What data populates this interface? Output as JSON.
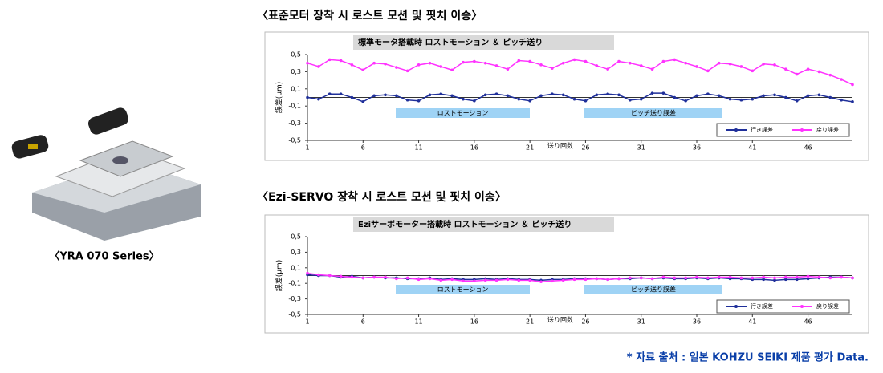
{
  "product_caption": "〈YRA 070 Series〉",
  "source_note": "* 자료 출처 : 일본 KOHZU SEIKI 제품 평가 Data.",
  "chart_data": [
    {
      "type": "line",
      "heading": "〈표준모터 장착 시 로스트 모션 및 핏치 이송〉",
      "title": "標準モータ搭載時  ロストモーション  ＆  ピッチ送り",
      "x_label": "送り回数",
      "y_label": "誤差(μm)",
      "annotations": [
        "ロストモーション",
        "ピッチ送り誤差"
      ],
      "x": [
        1,
        2,
        3,
        4,
        5,
        6,
        7,
        8,
        9,
        10,
        11,
        12,
        13,
        14,
        15,
        16,
        17,
        18,
        19,
        20,
        21,
        22,
        23,
        24,
        25,
        26,
        27,
        28,
        29,
        30,
        31,
        32,
        33,
        34,
        35,
        36,
        37,
        38,
        39,
        40,
        41,
        42,
        43,
        44,
        45,
        46,
        47,
        48,
        49,
        50
      ],
      "xlim": [
        1,
        50
      ],
      "xticks": [
        1,
        6,
        11,
        16,
        21,
        26,
        31,
        36,
        41,
        46
      ],
      "ylim": [
        -0.5,
        0.5
      ],
      "yticks": [
        {
          "value": -0.5,
          "label": "-0,5"
        },
        {
          "value": -0.3,
          "label": "-0,3"
        },
        {
          "value": -0.1,
          "label": "-0,1"
        },
        {
          "value": 0.1,
          "label": "0,1"
        },
        {
          "value": 0.3,
          "label": "0,3"
        },
        {
          "value": 0.5,
          "label": "0,5"
        }
      ],
      "legend": "lower right",
      "series": [
        {
          "name": "行き誤差",
          "color": "#1f2f9a",
          "values": [
            0.0,
            -0.02,
            0.04,
            0.04,
            0.0,
            -0.05,
            0.02,
            0.03,
            0.02,
            -0.03,
            -0.04,
            0.03,
            0.04,
            0.02,
            -0.02,
            -0.04,
            0.03,
            0.04,
            0.02,
            -0.02,
            -0.04,
            0.02,
            0.04,
            0.03,
            -0.02,
            -0.04,
            0.03,
            0.04,
            0.03,
            -0.03,
            -0.02,
            0.05,
            0.05,
            0.0,
            -0.04,
            0.02,
            0.04,
            0.02,
            -0.02,
            -0.03,
            -0.02,
            0.02,
            0.03,
            0.0,
            -0.04,
            0.02,
            0.03,
            0.0,
            -0.03,
            -0.05
          ]
        },
        {
          "name": "戻り誤差",
          "color": "#ff33ff",
          "values": [
            0.4,
            0.36,
            0.44,
            0.43,
            0.38,
            0.32,
            0.4,
            0.39,
            0.35,
            0.31,
            0.38,
            0.4,
            0.36,
            0.32,
            0.41,
            0.42,
            0.4,
            0.37,
            0.33,
            0.43,
            0.42,
            0.38,
            0.34,
            0.4,
            0.44,
            0.42,
            0.37,
            0.33,
            0.42,
            0.4,
            0.37,
            0.33,
            0.42,
            0.44,
            0.4,
            0.36,
            0.31,
            0.4,
            0.39,
            0.36,
            0.31,
            0.39,
            0.38,
            0.33,
            0.27,
            0.33,
            0.3,
            0.26,
            0.21,
            0.15
          ]
        }
      ]
    },
    {
      "type": "line",
      "heading": "〈Ezi-SERVO 장착 시 로스트 모션 및 핏치 이송〉",
      "title": "Eziサーボモーター搭載時  ロストモーション  ＆  ピッチ送り",
      "x_label": "送り回数",
      "y_label": "誤差(μm)",
      "annotations": [
        "ロストモーション",
        "ピッチ送り誤差"
      ],
      "x": [
        1,
        2,
        3,
        4,
        5,
        6,
        7,
        8,
        9,
        10,
        11,
        12,
        13,
        14,
        15,
        16,
        17,
        18,
        19,
        20,
        21,
        22,
        23,
        24,
        25,
        26,
        27,
        28,
        29,
        30,
        31,
        32,
        33,
        34,
        35,
        36,
        37,
        38,
        39,
        40,
        41,
        42,
        43,
        44,
        45,
        46,
        47,
        48,
        49,
        50
      ],
      "xlim": [
        1,
        50
      ],
      "xticks": [
        1,
        6,
        11,
        16,
        21,
        26,
        31,
        36,
        41,
        46
      ],
      "ylim": [
        -0.5,
        0.5
      ],
      "yticks": [
        {
          "value": -0.5,
          "label": "-0,5"
        },
        {
          "value": -0.3,
          "label": "-0,3"
        },
        {
          "value": -0.1,
          "label": "-0,1"
        },
        {
          "value": 0.1,
          "label": "0,1"
        },
        {
          "value": 0.3,
          "label": "0,3"
        },
        {
          "value": 0.5,
          "label": "0,5"
        }
      ],
      "legend": "lower right",
      "series": [
        {
          "name": "行き誤差",
          "color": "#1f2f9a",
          "values": [
            0.01,
            0.0,
            0.0,
            -0.02,
            -0.01,
            -0.03,
            -0.02,
            -0.03,
            -0.03,
            -0.04,
            -0.04,
            -0.03,
            -0.05,
            -0.04,
            -0.05,
            -0.05,
            -0.04,
            -0.05,
            -0.04,
            -0.05,
            -0.05,
            -0.06,
            -0.05,
            -0.05,
            -0.04,
            -0.04,
            -0.04,
            -0.05,
            -0.04,
            -0.04,
            -0.03,
            -0.04,
            -0.03,
            -0.04,
            -0.04,
            -0.03,
            -0.04,
            -0.03,
            -0.04,
            -0.04,
            -0.05,
            -0.05,
            -0.06,
            -0.05,
            -0.05,
            -0.04,
            -0.03,
            -0.02,
            -0.02,
            -0.03
          ]
        },
        {
          "name": "戻り誤差",
          "color": "#ff33ff",
          "values": [
            0.03,
            0.01,
            0.0,
            -0.01,
            -0.02,
            -0.03,
            -0.02,
            -0.02,
            -0.04,
            -0.03,
            -0.05,
            -0.04,
            -0.06,
            -0.05,
            -0.07,
            -0.07,
            -0.06,
            -0.06,
            -0.05,
            -0.06,
            -0.06,
            -0.08,
            -0.07,
            -0.06,
            -0.05,
            -0.05,
            -0.04,
            -0.05,
            -0.04,
            -0.03,
            -0.03,
            -0.04,
            -0.02,
            -0.03,
            -0.03,
            -0.02,
            -0.03,
            -0.02,
            -0.02,
            -0.03,
            -0.03,
            -0.02,
            -0.03,
            -0.02,
            -0.02,
            -0.01,
            -0.02,
            -0.03,
            -0.02,
            -0.03
          ]
        }
      ]
    }
  ]
}
